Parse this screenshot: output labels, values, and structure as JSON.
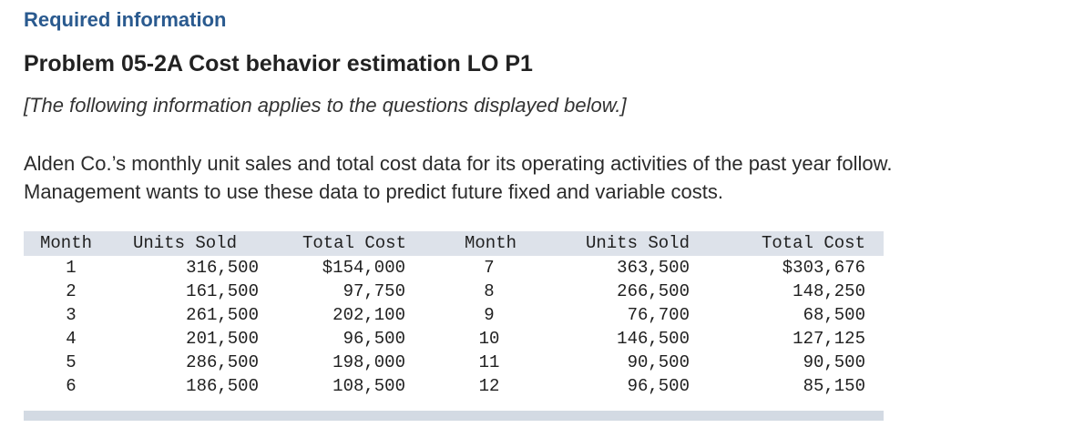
{
  "header": {
    "required_info": "Required information",
    "problem_title": "Problem 05-2A Cost behavior estimation LO P1",
    "note": "[The following information applies to the questions displayed below.]"
  },
  "description": {
    "line1": "Alden Co.’s monthly unit sales and total cost data for its operating activities of the past year follow.",
    "line2": "Management wants to use these data to predict future fixed and variable costs."
  },
  "table": {
    "headers": [
      "Month",
      "Units Sold",
      "Total Cost",
      "Month",
      "Units Sold",
      "Total Cost"
    ],
    "rows": [
      [
        "1",
        "316,500",
        "$154,000",
        "7",
        "363,500",
        "$303,676"
      ],
      [
        "2",
        "161,500",
        "97,750",
        "8",
        "266,500",
        "148,250"
      ],
      [
        "3",
        "261,500",
        "202,100",
        "9",
        "76,700",
        "68,500"
      ],
      [
        "4",
        "201,500",
        "96,500",
        "10",
        "146,500",
        "127,125"
      ],
      [
        "5",
        "286,500",
        "198,000",
        "11",
        "90,500",
        "90,500"
      ],
      [
        "6",
        "186,500",
        "108,500",
        "12",
        "96,500",
        "85,150"
      ]
    ]
  }
}
